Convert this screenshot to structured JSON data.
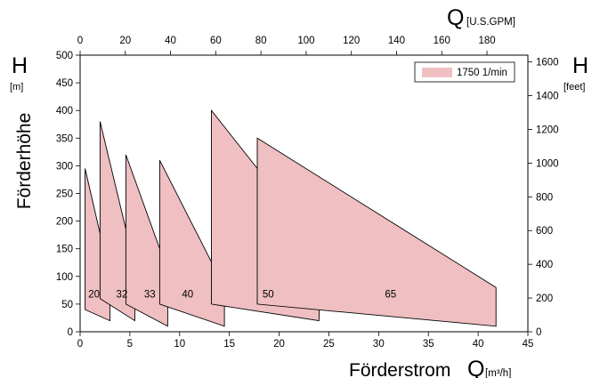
{
  "chart_data": {
    "type": "area",
    "title": "",
    "xlabel_bottom_main": "Förderstrom",
    "xlabel_bottom_symbol": "Q",
    "xlabel_bottom_unit": "[m³/h]",
    "xlabel_top_symbol": "Q",
    "xlabel_top_unit": "[U.S.GPM]",
    "ylabel_left_main": "Förderhöhe",
    "ylabel_left_symbol": "H",
    "ylabel_left_unit": "[m]",
    "ylabel_right_symbol": "H",
    "ylabel_right_unit": "[feet]",
    "xlim": [
      0,
      45
    ],
    "ylim": [
      0,
      500
    ],
    "top_xlim_gpm": [
      0,
      198.1
    ],
    "right_ylim_feet": [
      0,
      1640.4
    ],
    "xticks": [
      0,
      5,
      10,
      15,
      20,
      25,
      30,
      35,
      40,
      45
    ],
    "xtick_labels": [
      "0",
      "5",
      "10",
      "15",
      "20",
      "25",
      "30",
      "35",
      "40",
      "45"
    ],
    "yticks": [
      0,
      50,
      100,
      150,
      200,
      250,
      300,
      350,
      400,
      450,
      500
    ],
    "ytick_labels": [
      "0",
      "50",
      "100",
      "150",
      "200",
      "250",
      "300",
      "350",
      "400",
      "450",
      "500"
    ],
    "top_xticks_gpm": [
      0,
      20,
      40,
      60,
      80,
      100,
      120,
      140,
      160,
      180
    ],
    "top_xtick_labels": [
      "0",
      "20",
      "40",
      "60",
      "80",
      "100",
      "120",
      "140",
      "160",
      "180"
    ],
    "right_yticks_feet": [
      0,
      200,
      400,
      600,
      800,
      1000,
      1200,
      1400,
      1600
    ],
    "right_ytick_labels": [
      "0",
      "200",
      "400",
      "600",
      "800",
      "1000",
      "1200",
      "1400",
      "1600"
    ],
    "grid": false,
    "legend_placement": "top-right",
    "legend": [
      {
        "name": "1750 1/min",
        "color": "#efbfc2"
      }
    ],
    "fill_color": "#efbfc2",
    "line_color": "#000000",
    "series": [
      {
        "name": "20",
        "polygon": [
          [
            0.5,
            295
          ],
          [
            3.0,
            100
          ],
          [
            3.0,
            20
          ],
          [
            0.5,
            40
          ]
        ],
        "label_at": [
          1.4,
          68
        ]
      },
      {
        "name": "32",
        "polygon": [
          [
            2.0,
            380
          ],
          [
            5.5,
            118
          ],
          [
            5.5,
            20
          ],
          [
            2.0,
            60
          ]
        ],
        "label_at": [
          4.2,
          68
        ]
      },
      {
        "name": "33",
        "polygon": [
          [
            4.6,
            320
          ],
          [
            8.8,
            110
          ],
          [
            8.8,
            10
          ],
          [
            4.6,
            50
          ]
        ],
        "label_at": [
          7.0,
          68
        ]
      },
      {
        "name": "40",
        "polygon": [
          [
            8.0,
            310
          ],
          [
            14.5,
            80
          ],
          [
            14.5,
            10
          ],
          [
            8.0,
            50
          ]
        ],
        "label_at": [
          10.8,
          68
        ]
      },
      {
        "name": "50",
        "polygon": [
          [
            13.2,
            400
          ],
          [
            24.2,
            150
          ],
          [
            24.0,
            20
          ],
          [
            13.2,
            50
          ]
        ],
        "label_at": [
          18.9,
          68
        ]
      },
      {
        "name": "65",
        "polygon": [
          [
            17.8,
            350
          ],
          [
            41.8,
            80
          ],
          [
            41.8,
            10
          ],
          [
            17.8,
            50
          ]
        ],
        "label_at": [
          31.2,
          68
        ]
      }
    ]
  }
}
